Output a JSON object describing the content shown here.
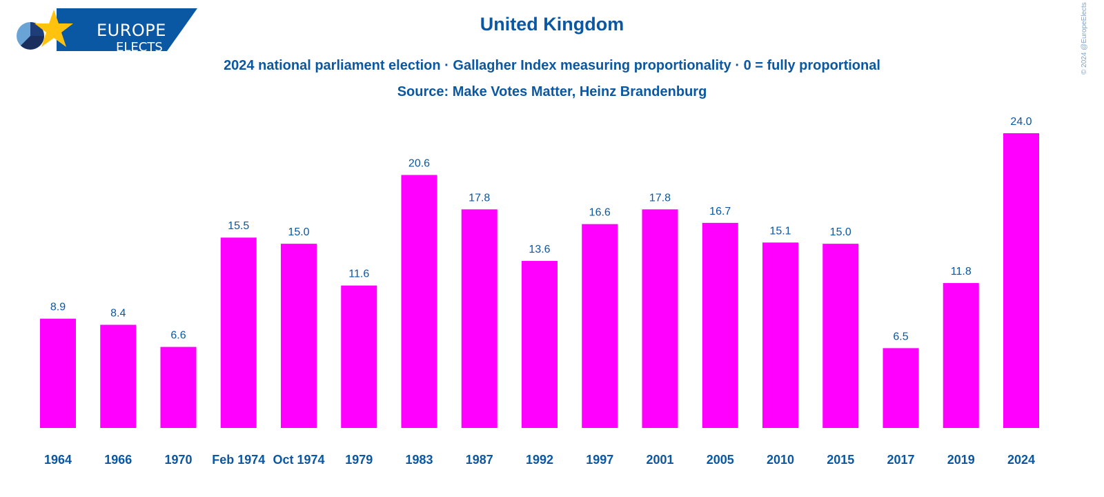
{
  "logo": {
    "line1": "EUROPE",
    "line2": "ELECTS"
  },
  "title": "United Kingdom",
  "subtitle": "2024 national parliament election · Gallagher Index measuring proportionality · 0 = fully proportional",
  "source": "Source: Make Votes Matter, Heinz Brandenburg",
  "copyright": "© 2024 @EuropeElects",
  "colors": {
    "bar": "#ff00ff",
    "text": "#0a57a3",
    "logo_bg": "#0a57a3",
    "star": "#ffc20e"
  },
  "chart_data": {
    "type": "bar",
    "categories": [
      "1964",
      "1966",
      "1970",
      "Feb 1974",
      "Oct 1974",
      "1979",
      "1983",
      "1987",
      "1992",
      "1997",
      "2001",
      "2005",
      "2010",
      "2015",
      "2017",
      "2019",
      "2024"
    ],
    "values": [
      8.9,
      8.4,
      6.6,
      15.5,
      15.0,
      11.6,
      20.6,
      17.8,
      13.6,
      16.6,
      17.8,
      16.7,
      15.1,
      15.0,
      6.5,
      11.8,
      24.0
    ],
    "value_labels": [
      "8.9",
      "8.4",
      "6.6",
      "15.5",
      "15.0",
      "11.6",
      "20.6",
      "17.8",
      "13.6",
      "16.6",
      "17.8",
      "16.7",
      "15.1",
      "15.0",
      "6.5",
      "11.8",
      "24.0"
    ],
    "xlabel": "",
    "ylabel": "",
    "ylim": [
      0,
      24
    ],
    "grid": false,
    "legend": "none"
  }
}
